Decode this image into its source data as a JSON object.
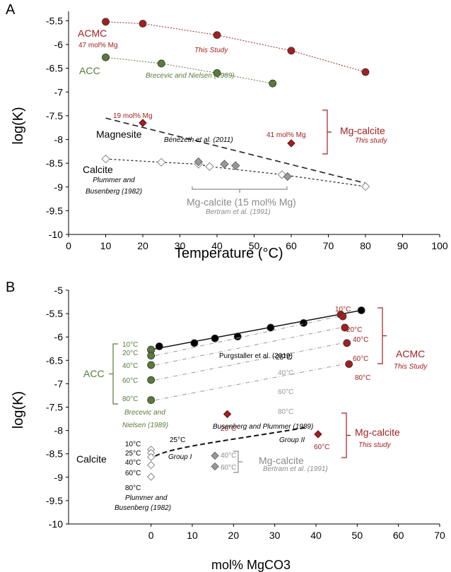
{
  "colors": {
    "acmc": "#a31f1f",
    "acc": "#5a7a3a",
    "mg_calcite": "#a31f1f",
    "magnesite": "#8b1a1a",
    "gray": "#8a8a8a",
    "purgstaller": "#111111"
  },
  "chart_data": [
    {
      "panel": "A",
      "type": "scatter",
      "xlabel": "Temperature (°C)",
      "ylabel": "log(K)",
      "xlim": [
        0,
        100
      ],
      "ylim": [
        -10,
        -5.3
      ],
      "xticks": [
        "0",
        "10",
        "20",
        "30",
        "40",
        "50",
        "60",
        "70",
        "80",
        "90",
        "100"
      ],
      "yticks": [
        "-5.5",
        "-6",
        "-6.5",
        "-7",
        "-7.5",
        "-8",
        "-8.5",
        "-9",
        "-9.5",
        "-10"
      ],
      "series": [
        {
          "name": "ACMC",
          "points": [
            [
              10,
              -5.52
            ],
            [
              20,
              -5.56
            ],
            [
              40,
              -5.8
            ],
            [
              60,
              -6.13
            ],
            [
              80,
              -6.58
            ]
          ]
        },
        {
          "name": "ACC",
          "points": [
            [
              10,
              -6.27
            ],
            [
              25,
              -6.4
            ],
            [
              40,
              -6.6
            ],
            [
              55,
              -6.82
            ]
          ]
        },
        {
          "name": "Magnesite",
          "line": [
            [
              10,
              -7.55
            ],
            [
              80,
              -8.92
            ]
          ]
        },
        {
          "name": "Calcite",
          "points": [
            [
              10,
              -8.41
            ],
            [
              25,
              -8.48
            ],
            [
              35,
              -8.52
            ],
            [
              38,
              -8.57
            ],
            [
              57.5,
              -8.74
            ],
            [
              80,
              -8.99
            ]
          ]
        },
        {
          "name": "Mg-calcite (15 mol% Mg)",
          "points": [
            [
              35,
              -8.47
            ],
            [
              42,
              -8.52
            ],
            [
              45,
              -8.55
            ],
            [
              59,
              -8.78
            ]
          ]
        },
        {
          "name": "Mg-calcite",
          "points": [
            [
              20,
              -7.65
            ],
            [
              60,
              -8.08
            ]
          ]
        }
      ],
      "labels": {
        "panel_letter": "A",
        "acmc": "ACMC",
        "acmc_mol": "47 mol% Mg",
        "this_study": "This Study",
        "acc": "ACC",
        "brecevic": "Brecevic and Nielsen (1989)",
        "mol19": "19 mol% Mg",
        "mol41": "41 mol% Mg",
        "mgcalcite": "Mg-calcite",
        "this_study_lower": "This study",
        "magnesite": "Magnesite",
        "benezeth": "Bénézeth et al. (2011)",
        "calcite": "Calcite",
        "plummer1": "Plummer and",
        "plummer2": "Busenberg (1982)",
        "mgcalcite15": "Mg-calcite (15 mol% Mg)",
        "bertram": "Bertram et al. (1991)"
      }
    },
    {
      "panel": "B",
      "type": "scatter",
      "xlabel": "mol% MgCO3",
      "ylabel": "log(K)",
      "xlim": [
        -20,
        70
      ],
      "ylim": [
        -10,
        -5
      ],
      "xticks": [
        "0",
        "10",
        "20",
        "30",
        "40",
        "50",
        "60",
        "70"
      ],
      "yticks": [
        "-5",
        "-5.5",
        "-6",
        "-6.5",
        "-7",
        "-7.5",
        "-8",
        "-8.5",
        "-9",
        "-9.5",
        "-10"
      ],
      "series": [
        {
          "name": "Purgstaller et al. (2019)",
          "points": [
            [
              0,
              -6.28
            ],
            [
              2,
              -6.2
            ],
            [
              10.5,
              -6.13
            ],
            [
              15.5,
              -6.03
            ],
            [
              21,
              -5.99
            ],
            [
              29,
              -5.8
            ],
            [
              37,
              -5.7
            ],
            [
              51,
              -5.43
            ]
          ]
        },
        {
          "name": "ACC",
          "points": [
            [
              0,
              -6.27
            ],
            [
              0,
              -6.4
            ],
            [
              0,
              -6.6
            ],
            [
              0,
              -6.92
            ],
            [
              0,
              -7.35
            ]
          ]
        },
        {
          "name": "ACMC",
          "points": [
            [
              46,
              -5.52
            ],
            [
              46.5,
              -5.56
            ],
            [
              47,
              -5.8
            ],
            [
              47.5,
              -6.13
            ],
            [
              48,
              -6.58
            ]
          ]
        },
        {
          "name": "Mg-calcite",
          "points": [
            [
              18.5,
              -7.65
            ],
            [
              40.5,
              -8.08
            ]
          ]
        },
        {
          "name": "Calcite",
          "points": [
            [
              0,
              -8.41
            ],
            [
              0,
              -8.48
            ],
            [
              0,
              -8.57
            ],
            [
              0,
              -8.74
            ],
            [
              0,
              -8.99
            ]
          ]
        },
        {
          "name": "Mg-calcite (Bertram)",
          "points": [
            [
              15.5,
              -8.54
            ],
            [
              15.5,
              -8.77
            ]
          ]
        }
      ],
      "labels": {
        "panel_letter": "B",
        "purgstaller": "Purgstaller et al. (2019)",
        "t25": "25°C",
        "t40": "40°C",
        "t60": "60°C",
        "t80": "80°C",
        "acmc": "ACMC",
        "this_study": "This  Study",
        "acc": "ACC",
        "acc_10": "10°C",
        "acc_20": "20°C",
        "acc_40": "40°C",
        "acc_60": "60°C",
        "acc_80": "80°C",
        "acmc_10": "10°C",
        "acmc_20": "20°C",
        "acmc_40": "40°C",
        "acmc_60": "60°C",
        "acmc_80": "80°C",
        "brecevic1": "Brecevic and",
        "brecevic2": "Nielsen (1989)",
        "mg20": "20°C",
        "mg60": "60°C",
        "mgcalcite": "Mg-calcite",
        "this_study_lower": "This study",
        "busenberg": "Busenberg and Plummer (1989)",
        "t25b": "25°C",
        "group1": "Group I",
        "group2": "Group II",
        "cal_10": "10°C",
        "cal_25": "25°C",
        "cal_40": "40°C",
        "cal_60": "60°C",
        "cal_80": "80°C",
        "calcite": "Calcite",
        "plummer1": "Plummer and",
        "plummer2": "Busenberg (1982)",
        "bert_40": "40°C",
        "bert_60": "60°C",
        "mgcalcite_gray": "Mg-calcite",
        "bertram": "Bertram et al. (1991)"
      }
    }
  ]
}
